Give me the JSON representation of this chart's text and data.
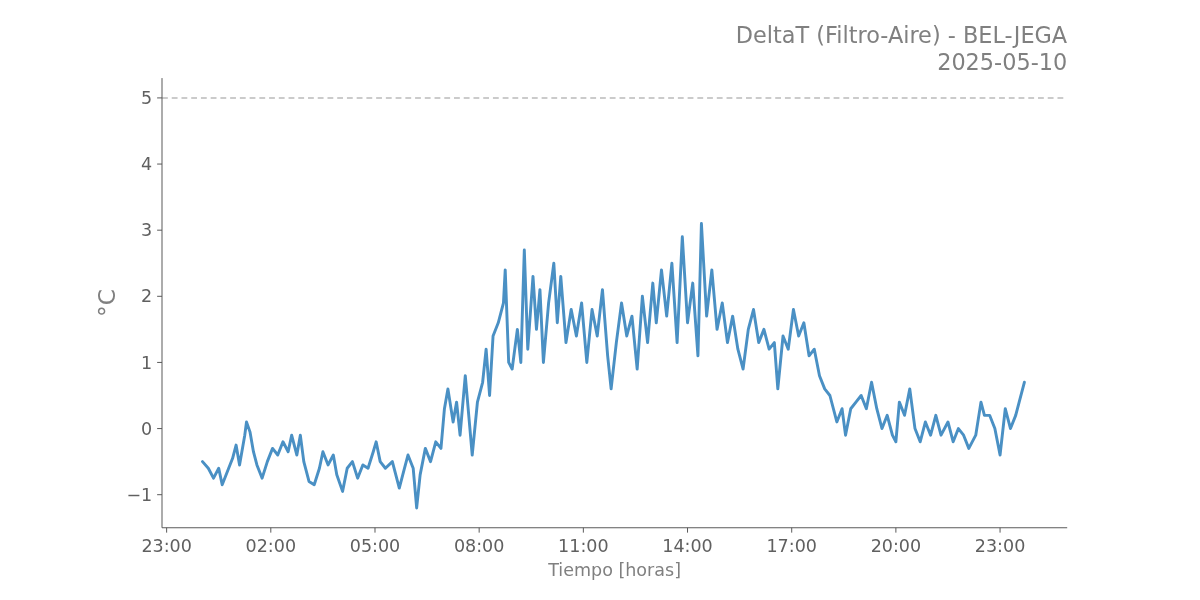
{
  "chart_data": {
    "type": "line",
    "title": "DeltaT (Filtro-Aire) - BEL-JEGA",
    "subtitle": "2025-05-10",
    "xlabel": "Tiempo [horas]",
    "ylabel": "°C",
    "xlim": [
      "2025-05-09T22:52",
      "2025-05-11T00:56"
    ],
    "xticks": [
      {
        "value": "2025-05-09T23:00",
        "label": "23:00"
      },
      {
        "value": "2025-05-10T02:00",
        "label": "02:00"
      },
      {
        "value": "2025-05-10T05:00",
        "label": "05:00"
      },
      {
        "value": "2025-05-10T08:00",
        "label": "08:00"
      },
      {
        "value": "2025-05-10T11:00",
        "label": "11:00"
      },
      {
        "value": "2025-05-10T14:00",
        "label": "14:00"
      },
      {
        "value": "2025-05-10T17:00",
        "label": "17:00"
      },
      {
        "value": "2025-05-10T20:00",
        "label": "20:00"
      },
      {
        "value": "2025-05-10T23:00",
        "label": "23:00"
      }
    ],
    "ylim": [
      -1.5,
      5.3
    ],
    "yticks": [
      {
        "value": -1,
        "label": "−1"
      },
      0,
      1,
      2,
      3,
      4,
      5
    ],
    "grid": false,
    "marker": "none",
    "line_style": "solid",
    "ref_lines": [
      {
        "axis": "y",
        "value": 5,
        "color": "#bbbbbb",
        "line_style": "dashed"
      }
    ],
    "series": [
      {
        "color": "#4a90c4",
        "x": [
          "2025-05-10T00:02",
          "2025-05-10T00:12",
          "2025-05-10T00:21",
          "2025-05-10T00:30",
          "2025-05-10T00:36",
          "2025-05-10T00:45",
          "2025-05-10T00:54",
          "2025-05-10T01:00",
          "2025-05-10T01:06",
          "2025-05-10T01:15",
          "2025-05-10T01:18",
          "2025-05-10T01:24",
          "2025-05-10T01:30",
          "2025-05-10T01:36",
          "2025-05-10T01:45",
          "2025-05-10T01:54",
          "2025-05-10T02:03",
          "2025-05-10T02:12",
          "2025-05-10T02:21",
          "2025-05-10T02:30",
          "2025-05-10T02:36",
          "2025-05-10T02:45",
          "2025-05-10T02:51",
          "2025-05-10T02:57",
          "2025-05-10T03:06",
          "2025-05-10T03:15",
          "2025-05-10T03:24",
          "2025-05-10T03:30",
          "2025-05-10T03:39",
          "2025-05-10T03:48",
          "2025-05-10T03:54",
          "2025-05-10T04:04",
          "2025-05-10T04:12",
          "2025-05-10T04:21",
          "2025-05-10T04:30",
          "2025-05-10T04:39",
          "2025-05-10T04:48",
          "2025-05-10T04:57",
          "2025-05-10T05:02",
          "2025-05-10T05:09",
          "2025-05-10T05:18",
          "2025-05-10T05:30",
          "2025-05-10T05:42",
          "2025-05-10T05:51",
          "2025-05-10T05:57",
          "2025-05-10T06:06",
          "2025-05-10T06:12",
          "2025-05-10T06:18",
          "2025-05-10T06:27",
          "2025-05-10T06:36",
          "2025-05-10T06:45",
          "2025-05-10T06:54",
          "2025-05-10T07:00",
          "2025-05-10T07:06",
          "2025-05-10T07:15",
          "2025-05-10T07:21",
          "2025-05-10T07:27",
          "2025-05-10T07:36",
          "2025-05-10T07:42",
          "2025-05-10T07:48",
          "2025-05-10T07:57",
          "2025-05-10T08:06",
          "2025-05-10T08:12",
          "2025-05-10T08:18",
          "2025-05-10T08:24",
          "2025-05-10T08:33",
          "2025-05-10T08:42",
          "2025-05-10T08:45",
          "2025-05-10T08:51",
          "2025-05-10T08:57",
          "2025-05-10T09:06",
          "2025-05-10T09:12",
          "2025-05-10T09:18",
          "2025-05-10T09:24",
          "2025-05-10T09:33",
          "2025-05-10T09:39",
          "2025-05-10T09:45",
          "2025-05-10T09:51",
          "2025-05-10T10:00",
          "2025-05-10T10:09",
          "2025-05-10T10:15",
          "2025-05-10T10:21",
          "2025-05-10T10:30",
          "2025-05-10T10:39",
          "2025-05-10T10:48",
          "2025-05-10T10:57",
          "2025-05-10T11:06",
          "2025-05-10T11:15",
          "2025-05-10T11:24",
          "2025-05-10T11:33",
          "2025-05-10T11:42",
          "2025-05-10T11:48",
          "2025-05-10T11:57",
          "2025-05-10T12:06",
          "2025-05-10T12:15",
          "2025-05-10T12:24",
          "2025-05-10T12:33",
          "2025-05-10T12:42",
          "2025-05-10T12:51",
          "2025-05-10T13:00",
          "2025-05-10T13:06",
          "2025-05-10T13:15",
          "2025-05-10T13:24",
          "2025-05-10T13:33",
          "2025-05-10T13:42",
          "2025-05-10T13:51",
          "2025-05-10T14:00",
          "2025-05-10T14:09",
          "2025-05-10T14:18",
          "2025-05-10T14:24",
          "2025-05-10T14:33",
          "2025-05-10T14:42",
          "2025-05-10T14:51",
          "2025-05-10T15:00",
          "2025-05-10T15:09",
          "2025-05-10T15:18",
          "2025-05-10T15:27",
          "2025-05-10T15:36",
          "2025-05-10T15:45",
          "2025-05-10T15:54",
          "2025-05-10T16:03",
          "2025-05-10T16:12",
          "2025-05-10T16:21",
          "2025-05-10T16:30",
          "2025-05-10T16:36",
          "2025-05-10T16:45",
          "2025-05-10T16:54",
          "2025-05-10T17:03",
          "2025-05-10T17:12",
          "2025-05-10T17:21",
          "2025-05-10T17:30",
          "2025-05-10T17:39",
          "2025-05-10T17:48",
          "2025-05-10T17:57",
          "2025-05-10T18:06",
          "2025-05-10T18:18",
          "2025-05-10T18:27",
          "2025-05-10T18:33",
          "2025-05-10T18:42",
          "2025-05-10T18:51",
          "2025-05-10T19:00",
          "2025-05-10T19:09",
          "2025-05-10T19:18",
          "2025-05-10T19:27",
          "2025-05-10T19:36",
          "2025-05-10T19:45",
          "2025-05-10T19:54",
          "2025-05-10T20:00",
          "2025-05-10T20:06",
          "2025-05-10T20:15",
          "2025-05-10T20:24",
          "2025-05-10T20:33",
          "2025-05-10T20:42",
          "2025-05-10T20:51",
          "2025-05-10T21:00",
          "2025-05-10T21:09",
          "2025-05-10T21:18",
          "2025-05-10T21:30",
          "2025-05-10T21:39",
          "2025-05-10T21:48",
          "2025-05-10T21:57",
          "2025-05-10T22:06",
          "2025-05-10T22:18",
          "2025-05-10T22:27",
          "2025-05-10T22:33",
          "2025-05-10T22:42",
          "2025-05-10T22:51",
          "2025-05-10T23:00",
          "2025-05-10T23:09",
          "2025-05-10T23:18",
          "2025-05-10T23:27",
          "2025-05-10T23:33",
          "2025-05-10T23:42"
        ],
        "values": [
          -0.5,
          -0.6,
          -0.75,
          -0.6,
          -0.85,
          -0.65,
          -0.45,
          -0.25,
          -0.55,
          -0.1,
          0.1,
          -0.05,
          -0.35,
          -0.55,
          -0.75,
          -0.5,
          -0.3,
          -0.4,
          -0.2,
          -0.35,
          -0.1,
          -0.4,
          -0.1,
          -0.5,
          -0.8,
          -0.85,
          -0.6,
          -0.35,
          -0.55,
          -0.4,
          -0.7,
          -0.95,
          -0.6,
          -0.5,
          -0.75,
          -0.55,
          -0.6,
          -0.35,
          -0.2,
          -0.5,
          -0.6,
          -0.5,
          -0.9,
          -0.6,
          -0.4,
          -0.6,
          -1.2,
          -0.7,
          -0.3,
          -0.5,
          -0.2,
          -0.3,
          0.3,
          0.6,
          0.1,
          0.4,
          -0.1,
          0.8,
          0.2,
          -0.4,
          0.4,
          0.7,
          1.2,
          0.5,
          1.4,
          1.6,
          1.9,
          2.4,
          1.0,
          0.9,
          1.5,
          1.0,
          2.7,
          1.2,
          2.3,
          1.5,
          2.1,
          1.0,
          1.9,
          2.5,
          1.6,
          2.3,
          1.3,
          1.8,
          1.4,
          1.9,
          1.0,
          1.8,
          1.4,
          2.1,
          1.1,
          0.6,
          1.3,
          1.9,
          1.4,
          1.7,
          0.9,
          2.0,
          1.3,
          2.2,
          1.6,
          2.4,
          1.7,
          2.5,
          1.3,
          2.9,
          1.6,
          2.2,
          1.1,
          3.1,
          1.7,
          2.4,
          1.5,
          1.9,
          1.3,
          1.7,
          1.2,
          0.9,
          1.5,
          1.8,
          1.3,
          1.5,
          1.2,
          1.3,
          0.6,
          1.4,
          1.2,
          1.8,
          1.4,
          1.6,
          1.1,
          1.2,
          0.8,
          0.6,
          0.5,
          0.1,
          0.3,
          -0.1,
          0.3,
          0.4,
          0.5,
          0.3,
          0.7,
          0.3,
          0.0,
          0.2,
          -0.1,
          -0.2,
          0.4,
          0.2,
          0.6,
          0.0,
          -0.2,
          0.1,
          -0.1,
          0.2,
          -0.1,
          0.1,
          -0.2,
          0.0,
          -0.1,
          -0.3,
          -0.1,
          0.4,
          0.2,
          0.2,
          0.0,
          -0.4,
          0.3,
          0.0,
          0.2,
          0.4,
          0.7
        ]
      }
    ]
  }
}
